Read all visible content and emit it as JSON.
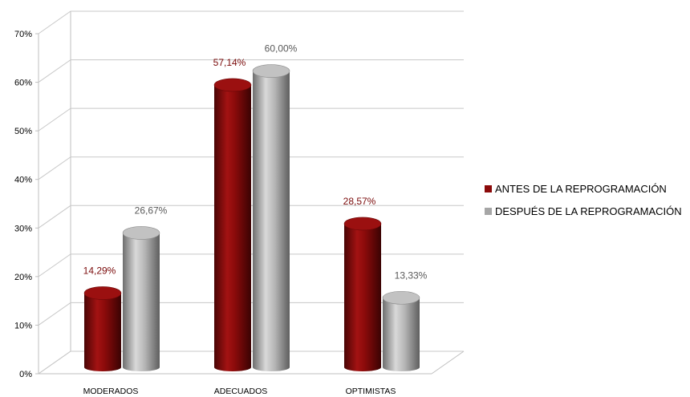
{
  "chart_data": {
    "type": "bar",
    "title": "",
    "xlabel": "",
    "ylabel": "",
    "ylim": [
      0,
      70
    ],
    "yticks": [
      "0%",
      "10%",
      "20%",
      "30%",
      "40%",
      "50%",
      "60%",
      "70%"
    ],
    "grid": true,
    "legend_position": "right",
    "categories": [
      "MODERADOS",
      "ADECUADOS",
      "OPTIMISTAS"
    ],
    "series": [
      {
        "name": "ANTES DE LA REPROGRAMACIÓN",
        "values": [
          14.29,
          57.14,
          28.57
        ],
        "labels": [
          "14,29%",
          "57,14%",
          "28,57%"
        ],
        "color": "#8B0A0A",
        "label_color": "#7A0A0A"
      },
      {
        "name": "DESPUÉS DE LA REPROGRAMACIÓN",
        "values": [
          26.67,
          60.0,
          13.33
        ],
        "labels": [
          "26,67%",
          "60,00%",
          "13,33%"
        ],
        "color": "#A6A6A6",
        "label_color": "#595959"
      }
    ]
  }
}
